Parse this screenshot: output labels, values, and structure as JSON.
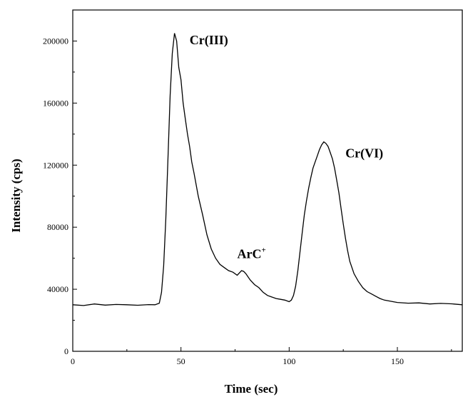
{
  "chart_data": {
    "type": "line",
    "title": "",
    "xlabel": "Time (sec)",
    "ylabel": "Intensity (cps)",
    "xlim": [
      0,
      180
    ],
    "ylim": [
      0,
      220000
    ],
    "xticks": [
      0,
      50,
      100,
      150
    ],
    "yticks": [
      0,
      40000,
      80000,
      120000,
      160000,
      200000
    ],
    "xtick_labels": [
      "0",
      "50",
      "100",
      "150"
    ],
    "ytick_labels": [
      "0",
      "40000",
      "80000",
      "120000",
      "160000",
      "200000"
    ],
    "grid": false,
    "legend": "none",
    "line_color": "#000000",
    "series": [
      {
        "x": [
          0,
          5,
          10,
          15,
          20,
          25,
          30,
          35,
          38,
          40,
          41,
          42,
          43,
          44,
          45,
          46,
          47,
          48,
          49,
          50,
          51,
          52,
          53,
          54,
          55,
          56,
          58,
          60,
          62,
          64,
          66,
          68,
          70,
          72,
          74,
          76,
          78,
          79,
          80,
          82,
          84,
          86,
          88,
          90,
          92,
          94,
          96,
          98,
          100,
          101,
          102,
          103,
          104,
          105,
          106,
          107,
          108,
          109,
          110,
          111,
          112,
          113,
          114,
          115,
          116,
          117,
          118,
          119,
          120,
          121,
          122,
          123,
          124,
          125,
          126,
          127,
          128,
          130,
          132,
          134,
          136,
          138,
          140,
          142,
          144,
          146,
          148,
          150,
          155,
          160,
          165,
          170,
          175,
          180
        ],
        "y": [
          30000,
          29500,
          30500,
          29800,
          30200,
          30000,
          29700,
          30100,
          30000,
          31000,
          38000,
          55000,
          85000,
          125000,
          165000,
          192000,
          205000,
          200000,
          183000,
          175000,
          160000,
          150000,
          140000,
          132000,
          122000,
          115000,
          100000,
          88000,
          75000,
          66000,
          60000,
          56000,
          54000,
          52000,
          51000,
          49000,
          52000,
          51500,
          50000,
          46000,
          43000,
          41000,
          38000,
          36000,
          35000,
          34000,
          33500,
          33000,
          32000,
          33000,
          36000,
          42000,
          52000,
          64000,
          76000,
          88000,
          97000,
          105000,
          112000,
          118000,
          122000,
          126000,
          130000,
          133000,
          135000,
          134000,
          132000,
          128000,
          124000,
          118000,
          110000,
          102000,
          92000,
          82000,
          73000,
          65000,
          58000,
          50000,
          45000,
          41000,
          38500,
          37000,
          35500,
          34000,
          33000,
          32500,
          32000,
          31500,
          31000,
          31200,
          30500,
          30900,
          30600,
          30000
        ]
      }
    ],
    "annotations": [
      {
        "text": "Cr(III)",
        "x": 54,
        "y": 198000
      },
      {
        "text": "ArC",
        "sup": "+",
        "x": 76,
        "y": 60000
      },
      {
        "text": "Cr(VI)",
        "x": 126,
        "y": 125000
      }
    ]
  }
}
